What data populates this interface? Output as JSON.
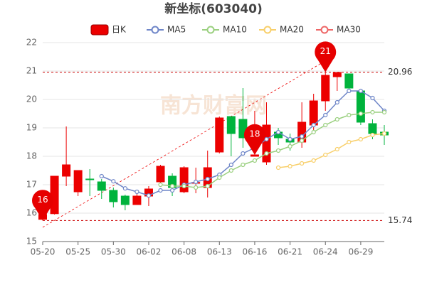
{
  "chart_data": {
    "type": "candlestick",
    "title": "新坐标(603040)",
    "watermark": "南方财富网",
    "categories": [
      "05-20",
      null,
      null,
      "05-25",
      null,
      null,
      "05-30",
      null,
      null,
      "06-02",
      null,
      null,
      "06-08",
      null,
      null,
      "06-13",
      null,
      null,
      "06-16",
      null,
      null,
      "06-21",
      null,
      null,
      "06-24",
      null,
      null,
      "06-29",
      null,
      null
    ],
    "candles": {
      "name": "日K",
      "up_color": "#ec0000",
      "down_color": "#00b33c",
      "open": [
        15.78,
        15.98,
        17.3,
        16.75,
        17.2,
        17.1,
        16.8,
        16.6,
        16.3,
        16.6,
        17.1,
        17.3,
        16.75,
        17.05,
        16.9,
        18.15,
        19.4,
        19.3,
        18.0,
        17.8,
        18.85,
        18.6,
        18.5,
        19.1,
        19.95,
        20.8,
        20.9,
        20.3,
        19.15,
        18.85
      ],
      "high": [
        16.05,
        17.3,
        19.05,
        17.5,
        17.55,
        17.2,
        16.9,
        16.65,
        16.7,
        16.95,
        17.7,
        17.4,
        17.65,
        17.6,
        18.2,
        19.4,
        19.4,
        20.4,
        19.6,
        19.9,
        19.0,
        18.8,
        19.9,
        20.2,
        20.96,
        20.95,
        20.9,
        20.3,
        19.3,
        19.1
      ],
      "low": [
        15.74,
        15.95,
        16.95,
        16.6,
        16.6,
        16.5,
        16.2,
        16.1,
        16.3,
        16.25,
        17.0,
        16.6,
        16.7,
        16.7,
        16.55,
        18.1,
        18.0,
        18.3,
        18.0,
        17.7,
        18.4,
        18.2,
        18.3,
        18.9,
        19.6,
        20.3,
        20.3,
        19.1,
        18.6,
        18.4
      ],
      "close": [
        15.95,
        17.3,
        17.7,
        17.5,
        17.18,
        16.8,
        16.4,
        16.3,
        16.6,
        16.85,
        17.65,
        16.9,
        17.6,
        17.08,
        17.6,
        19.35,
        18.8,
        18.65,
        18.05,
        19.1,
        18.65,
        18.5,
        19.2,
        19.95,
        20.85,
        20.95,
        20.4,
        19.2,
        18.8,
        18.75
      ]
    },
    "series": [
      {
        "name": "MA5",
        "color": "#6f86c8",
        "values": [
          null,
          null,
          null,
          null,
          null,
          17.3,
          17.12,
          16.87,
          16.75,
          16.62,
          16.8,
          16.8,
          17.0,
          17.1,
          17.2,
          17.35,
          17.7,
          18.1,
          18.3,
          18.6,
          18.85,
          18.6,
          18.7,
          19.1,
          19.45,
          19.9,
          20.3,
          20.3,
          20.05,
          19.6
        ]
      },
      {
        "name": "MA10",
        "color": "#9bd080",
        "values": [
          null,
          null,
          null,
          null,
          null,
          null,
          null,
          null,
          null,
          null,
          17.0,
          16.95,
          16.95,
          16.9,
          16.95,
          17.25,
          17.5,
          17.7,
          17.85,
          18.1,
          18.2,
          18.35,
          18.55,
          18.85,
          19.1,
          19.3,
          19.45,
          19.5,
          19.55,
          19.55
        ]
      },
      {
        "name": "MA20",
        "color": "#f8cf6a",
        "values": [
          null,
          null,
          null,
          null,
          null,
          null,
          null,
          null,
          null,
          null,
          null,
          null,
          null,
          null,
          null,
          null,
          null,
          null,
          null,
          null,
          17.6,
          17.65,
          17.75,
          17.85,
          18.05,
          18.25,
          18.5,
          18.6,
          18.75,
          18.8
        ]
      },
      {
        "name": "MA30",
        "color": "#ee6666",
        "values": [
          null,
          null,
          null,
          null,
          null,
          null,
          null,
          null,
          null,
          null,
          null,
          null,
          null,
          null,
          null,
          null,
          null,
          null,
          null,
          null,
          null,
          null,
          null,
          null,
          null,
          null,
          null,
          null,
          null,
          null
        ]
      }
    ],
    "reference_lines": [
      20.96,
      15.74
    ],
    "bubbles": [
      "16",
      "18",
      "21"
    ],
    "ylim": [
      15,
      22
    ],
    "yticks": [
      15,
      16,
      17,
      18,
      19,
      20,
      21,
      22
    ],
    "grid": true
  }
}
